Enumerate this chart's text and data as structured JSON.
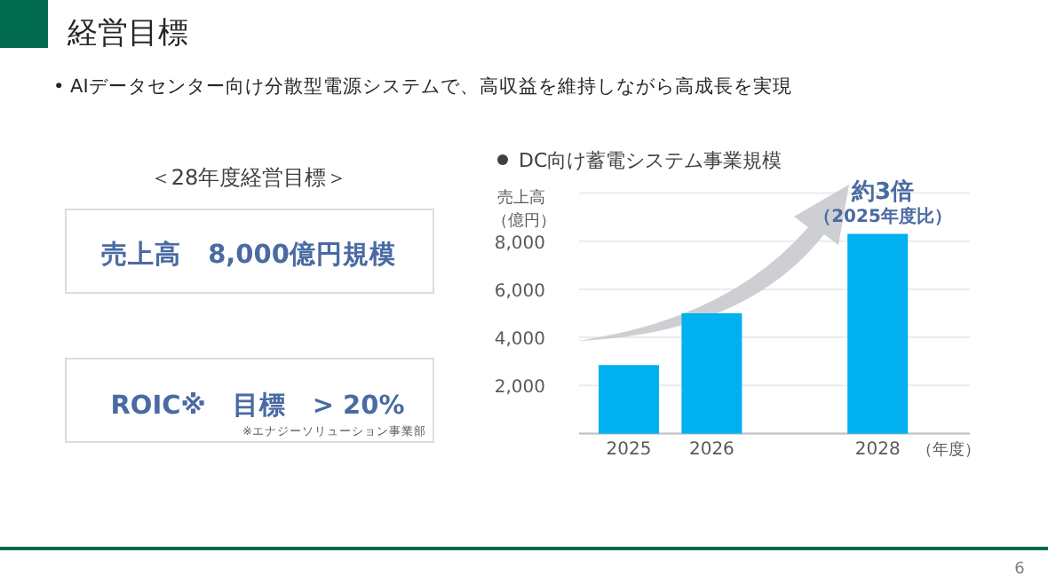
{
  "chart_data": {
    "type": "bar",
    "title": "DC向け蓄電システム事業規模",
    "ylabel": "売上高（億円）",
    "xlabel": "（年度）",
    "categories": [
      "2025",
      "2026",
      null,
      "2028"
    ],
    "values": [
      2850,
      5000,
      null,
      8300
    ],
    "color": "#00b0f0",
    "ylim": [
      0,
      10000
    ],
    "yticks": [
      {
        "value": 0,
        "label": null
      },
      {
        "value": 2000,
        "label": "2,000"
      },
      {
        "value": 4000,
        "label": "4,000"
      },
      {
        "value": 6000,
        "label": "6,000"
      },
      {
        "value": 8000,
        "label": "8,000"
      },
      {
        "value": 10000,
        "label": null
      }
    ],
    "grid": "y",
    "annotations": [
      "経営目標",
      "•  AIデータセンター向け分散型電源システムで、高収益を維持しながら高成長を実現",
      "＜28年度経営目標＞",
      "売上高　8,000億円規模",
      "ROIC※　目標　> 20%",
      "※エナジーソリューション事業部",
      "約3倍",
      "（2025年度比）",
      "6"
    ]
  }
}
